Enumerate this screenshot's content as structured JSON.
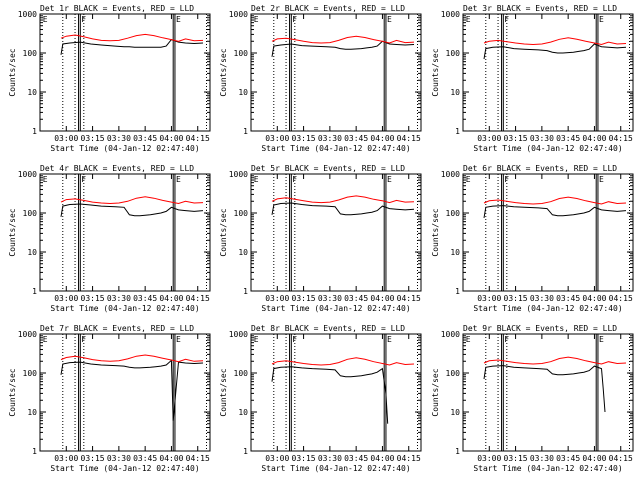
{
  "figure": {
    "ylabel": "Counts/sec",
    "xlabel": "Start Time (04-Jan-12 02:47:40)",
    "title_suffix": "BLACK = Events, RED = LLD",
    "y_tick_labels": [
      "1",
      "10",
      "100",
      "1000"
    ],
    "x_tick_labels": [
      "03:00",
      "03:15",
      "03:30",
      "03:45",
      "04:00",
      "04:15"
    ],
    "marker_labels": [
      "E",
      "F",
      "E"
    ],
    "colors": {
      "events": "#000000",
      "lld": "#ff0000",
      "axes": "#000000"
    }
  },
  "chart_data": [
    {
      "type": "line",
      "title": "Det 1r",
      "ylim": [
        1,
        1000
      ],
      "yscale": "log",
      "series": [
        {
          "color": "#000000",
          "x": [
            "02:57",
            "02:58",
            "03:02",
            "03:08",
            "03:14",
            "03:20",
            "03:28",
            "03:33",
            "03:36",
            "03:39",
            "03:42",
            "03:48",
            "03:51",
            "03:54",
            "03:57",
            "04:00",
            "04:04",
            "04:08",
            "04:13",
            "04:18"
          ],
          "y": [
            90,
            170,
            180,
            190,
            170,
            160,
            150,
            145,
            145,
            140,
            140,
            140,
            140,
            140,
            150,
            220,
            190,
            180,
            175,
            180
          ]
        },
        {
          "color": "#ff0000",
          "x": [
            "02:57",
            "03:00",
            "03:05",
            "03:10",
            "03:15",
            "03:20",
            "03:25",
            "03:30",
            "03:35",
            "03:40",
            "03:45",
            "03:50",
            "03:55",
            "04:00",
            "04:04",
            "04:08",
            "04:13",
            "04:18"
          ],
          "y": [
            240,
            270,
            290,
            260,
            230,
            210,
            205,
            210,
            240,
            280,
            300,
            280,
            245,
            220,
            200,
            230,
            205,
            210
          ]
        }
      ]
    },
    {
      "type": "line",
      "title": "Det 2r",
      "ylim": [
        1,
        1000
      ],
      "yscale": "log",
      "series": [
        {
          "color": "#000000",
          "x": [
            "02:57",
            "02:58",
            "03:02",
            "03:08",
            "03:14",
            "03:20",
            "03:28",
            "03:33",
            "03:36",
            "03:39",
            "03:42",
            "03:48",
            "03:51",
            "03:54",
            "03:57",
            "04:00",
            "04:04",
            "04:08",
            "04:13",
            "04:18"
          ],
          "y": [
            80,
            150,
            160,
            170,
            155,
            150,
            145,
            140,
            130,
            125,
            125,
            130,
            135,
            140,
            150,
            200,
            170,
            165,
            160,
            165
          ]
        },
        {
          "color": "#ff0000",
          "x": [
            "02:57",
            "03:00",
            "03:05",
            "03:10",
            "03:15",
            "03:20",
            "03:25",
            "03:30",
            "03:35",
            "03:40",
            "03:45",
            "03:50",
            "03:55",
            "04:00",
            "04:04",
            "04:08",
            "04:13",
            "04:18"
          ],
          "y": [
            200,
            230,
            240,
            220,
            200,
            185,
            180,
            185,
            210,
            250,
            270,
            250,
            220,
            200,
            180,
            210,
            185,
            190
          ]
        }
      ]
    },
    {
      "type": "line",
      "title": "Det 3r",
      "ylim": [
        1,
        1000
      ],
      "yscale": "log",
      "series": [
        {
          "color": "#000000",
          "x": [
            "02:57",
            "02:58",
            "03:02",
            "03:08",
            "03:14",
            "03:20",
            "03:28",
            "03:33",
            "03:36",
            "03:39",
            "03:42",
            "03:48",
            "03:51",
            "03:54",
            "03:57",
            "04:00",
            "04:04",
            "04:08",
            "04:13",
            "04:18"
          ],
          "y": [
            70,
            130,
            140,
            145,
            130,
            125,
            120,
            115,
            105,
            100,
            100,
            105,
            110,
            115,
            125,
            170,
            145,
            140,
            135,
            140
          ]
        },
        {
          "color": "#ff0000",
          "x": [
            "02:57",
            "03:00",
            "03:05",
            "03:10",
            "03:15",
            "03:20",
            "03:25",
            "03:30",
            "03:35",
            "03:40",
            "03:45",
            "03:50",
            "03:55",
            "04:00",
            "04:04",
            "04:08",
            "04:13",
            "04:18"
          ],
          "y": [
            180,
            200,
            210,
            195,
            180,
            170,
            165,
            170,
            190,
            225,
            245,
            225,
            200,
            180,
            165,
            190,
            170,
            175
          ]
        }
      ]
    },
    {
      "type": "line",
      "title": "Det 4r",
      "ylim": [
        1,
        1000
      ],
      "yscale": "log",
      "series": [
        {
          "color": "#000000",
          "x": [
            "02:57",
            "02:58",
            "03:02",
            "03:08",
            "03:14",
            "03:20",
            "03:28",
            "03:33",
            "03:36",
            "03:39",
            "03:42",
            "03:48",
            "03:51",
            "03:54",
            "03:57",
            "04:00",
            "04:04",
            "04:08",
            "04:13",
            "04:18"
          ],
          "y": [
            80,
            150,
            165,
            170,
            160,
            150,
            145,
            140,
            90,
            85,
            85,
            90,
            95,
            100,
            110,
            140,
            120,
            115,
            110,
            115
          ]
        },
        {
          "color": "#ff0000",
          "x": [
            "02:57",
            "03:00",
            "03:05",
            "03:10",
            "03:15",
            "03:20",
            "03:25",
            "03:30",
            "03:35",
            "03:40",
            "03:45",
            "03:50",
            "03:55",
            "04:00",
            "04:04",
            "04:08",
            "04:13",
            "04:18"
          ],
          "y": [
            190,
            220,
            230,
            210,
            190,
            180,
            175,
            180,
            200,
            240,
            260,
            240,
            210,
            190,
            175,
            200,
            180,
            185
          ]
        }
      ]
    },
    {
      "type": "line",
      "title": "Det 5r",
      "ylim": [
        1,
        1000
      ],
      "yscale": "log",
      "series": [
        {
          "color": "#000000",
          "x": [
            "02:57",
            "02:58",
            "03:02",
            "03:08",
            "03:14",
            "03:20",
            "03:28",
            "03:33",
            "03:36",
            "03:39",
            "03:42",
            "03:48",
            "03:51",
            "03:54",
            "03:57",
            "04:00",
            "04:04",
            "04:08",
            "04:13",
            "04:18"
          ],
          "y": [
            90,
            160,
            175,
            180,
            165,
            155,
            150,
            145,
            95,
            90,
            90,
            95,
            100,
            105,
            115,
            150,
            130,
            125,
            120,
            125
          ]
        },
        {
          "color": "#ff0000",
          "x": [
            "02:57",
            "03:00",
            "03:05",
            "03:10",
            "03:15",
            "03:20",
            "03:25",
            "03:30",
            "03:35",
            "03:40",
            "03:45",
            "03:50",
            "03:55",
            "04:00",
            "04:04",
            "04:08",
            "04:13",
            "04:18"
          ],
          "y": [
            200,
            230,
            245,
            225,
            205,
            190,
            185,
            190,
            215,
            255,
            275,
            255,
            225,
            205,
            185,
            210,
            190,
            195
          ]
        }
      ]
    },
    {
      "type": "line",
      "title": "Det 6r",
      "ylim": [
        1,
        1000
      ],
      "yscale": "log",
      "series": [
        {
          "color": "#000000",
          "x": [
            "02:57",
            "02:58",
            "03:02",
            "03:08",
            "03:14",
            "03:20",
            "03:28",
            "03:33",
            "03:36",
            "03:39",
            "03:42",
            "03:48",
            "03:51",
            "03:54",
            "03:57",
            "04:00",
            "04:04",
            "04:08",
            "04:13",
            "04:18"
          ],
          "y": [
            75,
            140,
            150,
            155,
            145,
            140,
            135,
            130,
            90,
            85,
            85,
            90,
            95,
            100,
            110,
            140,
            120,
            115,
            110,
            115
          ]
        },
        {
          "color": "#ff0000",
          "x": [
            "02:57",
            "03:00",
            "03:05",
            "03:10",
            "03:15",
            "03:20",
            "03:25",
            "03:30",
            "03:35",
            "03:40",
            "03:45",
            "03:50",
            "03:55",
            "04:00",
            "04:04",
            "04:08",
            "04:13",
            "04:18"
          ],
          "y": [
            180,
            205,
            215,
            200,
            185,
            175,
            170,
            175,
            195,
            235,
            255,
            235,
            205,
            185,
            170,
            195,
            175,
            180
          ]
        }
      ]
    },
    {
      "type": "line",
      "title": "Det 7r",
      "ylim": [
        1,
        1000
      ],
      "yscale": "log",
      "series": [
        {
          "color": "#000000",
          "x": [
            "02:57",
            "02:58",
            "03:02",
            "03:08",
            "03:14",
            "03:20",
            "03:28",
            "03:33",
            "03:36",
            "03:39",
            "03:42",
            "03:48",
            "03:51",
            "03:54",
            "03:57",
            "04:00",
            "04:01",
            "04:04",
            "04:08",
            "04:13",
            "04:18"
          ],
          "y": [
            90,
            170,
            185,
            190,
            170,
            160,
            155,
            150,
            140,
            135,
            135,
            140,
            145,
            150,
            160,
            210,
            6,
            190,
            180,
            175,
            180
          ]
        },
        {
          "color": "#ff0000",
          "x": [
            "02:57",
            "03:00",
            "03:05",
            "03:10",
            "03:15",
            "03:20",
            "03:25",
            "03:30",
            "03:35",
            "03:40",
            "03:45",
            "03:50",
            "03:55",
            "04:00",
            "04:04",
            "04:08",
            "04:13",
            "04:18"
          ],
          "y": [
            220,
            250,
            270,
            245,
            220,
            205,
            200,
            205,
            230,
            270,
            290,
            270,
            240,
            215,
            195,
            225,
            200,
            205
          ]
        }
      ]
    },
    {
      "type": "line",
      "title": "Det 8r",
      "ylim": [
        1,
        1000
      ],
      "yscale": "log",
      "series": [
        {
          "color": "#000000",
          "x": [
            "02:57",
            "02:58",
            "03:02",
            "03:08",
            "03:14",
            "03:20",
            "03:28",
            "03:33",
            "03:36",
            "03:39",
            "03:42",
            "03:48",
            "03:51",
            "03:54",
            "03:57",
            "04:00",
            "04:02",
            "04:03"
          ],
          "y": [
            60,
            130,
            140,
            145,
            135,
            130,
            125,
            120,
            85,
            80,
            80,
            85,
            90,
            95,
            105,
            130,
            30,
            5
          ]
        },
        {
          "color": "#ff0000",
          "x": [
            "02:57",
            "03:00",
            "03:05",
            "03:10",
            "03:15",
            "03:20",
            "03:25",
            "03:30",
            "03:35",
            "03:40",
            "03:45",
            "03:50",
            "03:55",
            "04:00",
            "04:04",
            "04:08",
            "04:13",
            "04:18"
          ],
          "y": [
            170,
            195,
            205,
            190,
            175,
            165,
            160,
            165,
            185,
            225,
            245,
            225,
            195,
            175,
            160,
            185,
            165,
            170
          ]
        }
      ]
    },
    {
      "type": "line",
      "title": "Det 9r",
      "ylim": [
        1,
        1000
      ],
      "yscale": "log",
      "series": [
        {
          "color": "#000000",
          "x": [
            "02:57",
            "02:58",
            "03:02",
            "03:08",
            "03:14",
            "03:20",
            "03:28",
            "03:33",
            "03:36",
            "03:39",
            "03:42",
            "03:48",
            "03:51",
            "03:54",
            "03:57",
            "04:00",
            "04:04",
            "04:05",
            "04:06"
          ],
          "y": [
            70,
            140,
            150,
            155,
            140,
            135,
            130,
            125,
            95,
            90,
            90,
            95,
            100,
            105,
            115,
            150,
            130,
            40,
            10
          ]
        },
        {
          "color": "#ff0000",
          "x": [
            "02:57",
            "03:00",
            "03:05",
            "03:10",
            "03:15",
            "03:20",
            "03:25",
            "03:30",
            "03:35",
            "03:40",
            "03:45",
            "03:50",
            "03:55",
            "04:00",
            "04:04",
            "04:08",
            "04:13",
            "04:18"
          ],
          "y": [
            180,
            205,
            215,
            200,
            185,
            175,
            170,
            175,
            195,
            235,
            255,
            235,
            205,
            185,
            170,
            195,
            175,
            180
          ]
        }
      ]
    }
  ]
}
